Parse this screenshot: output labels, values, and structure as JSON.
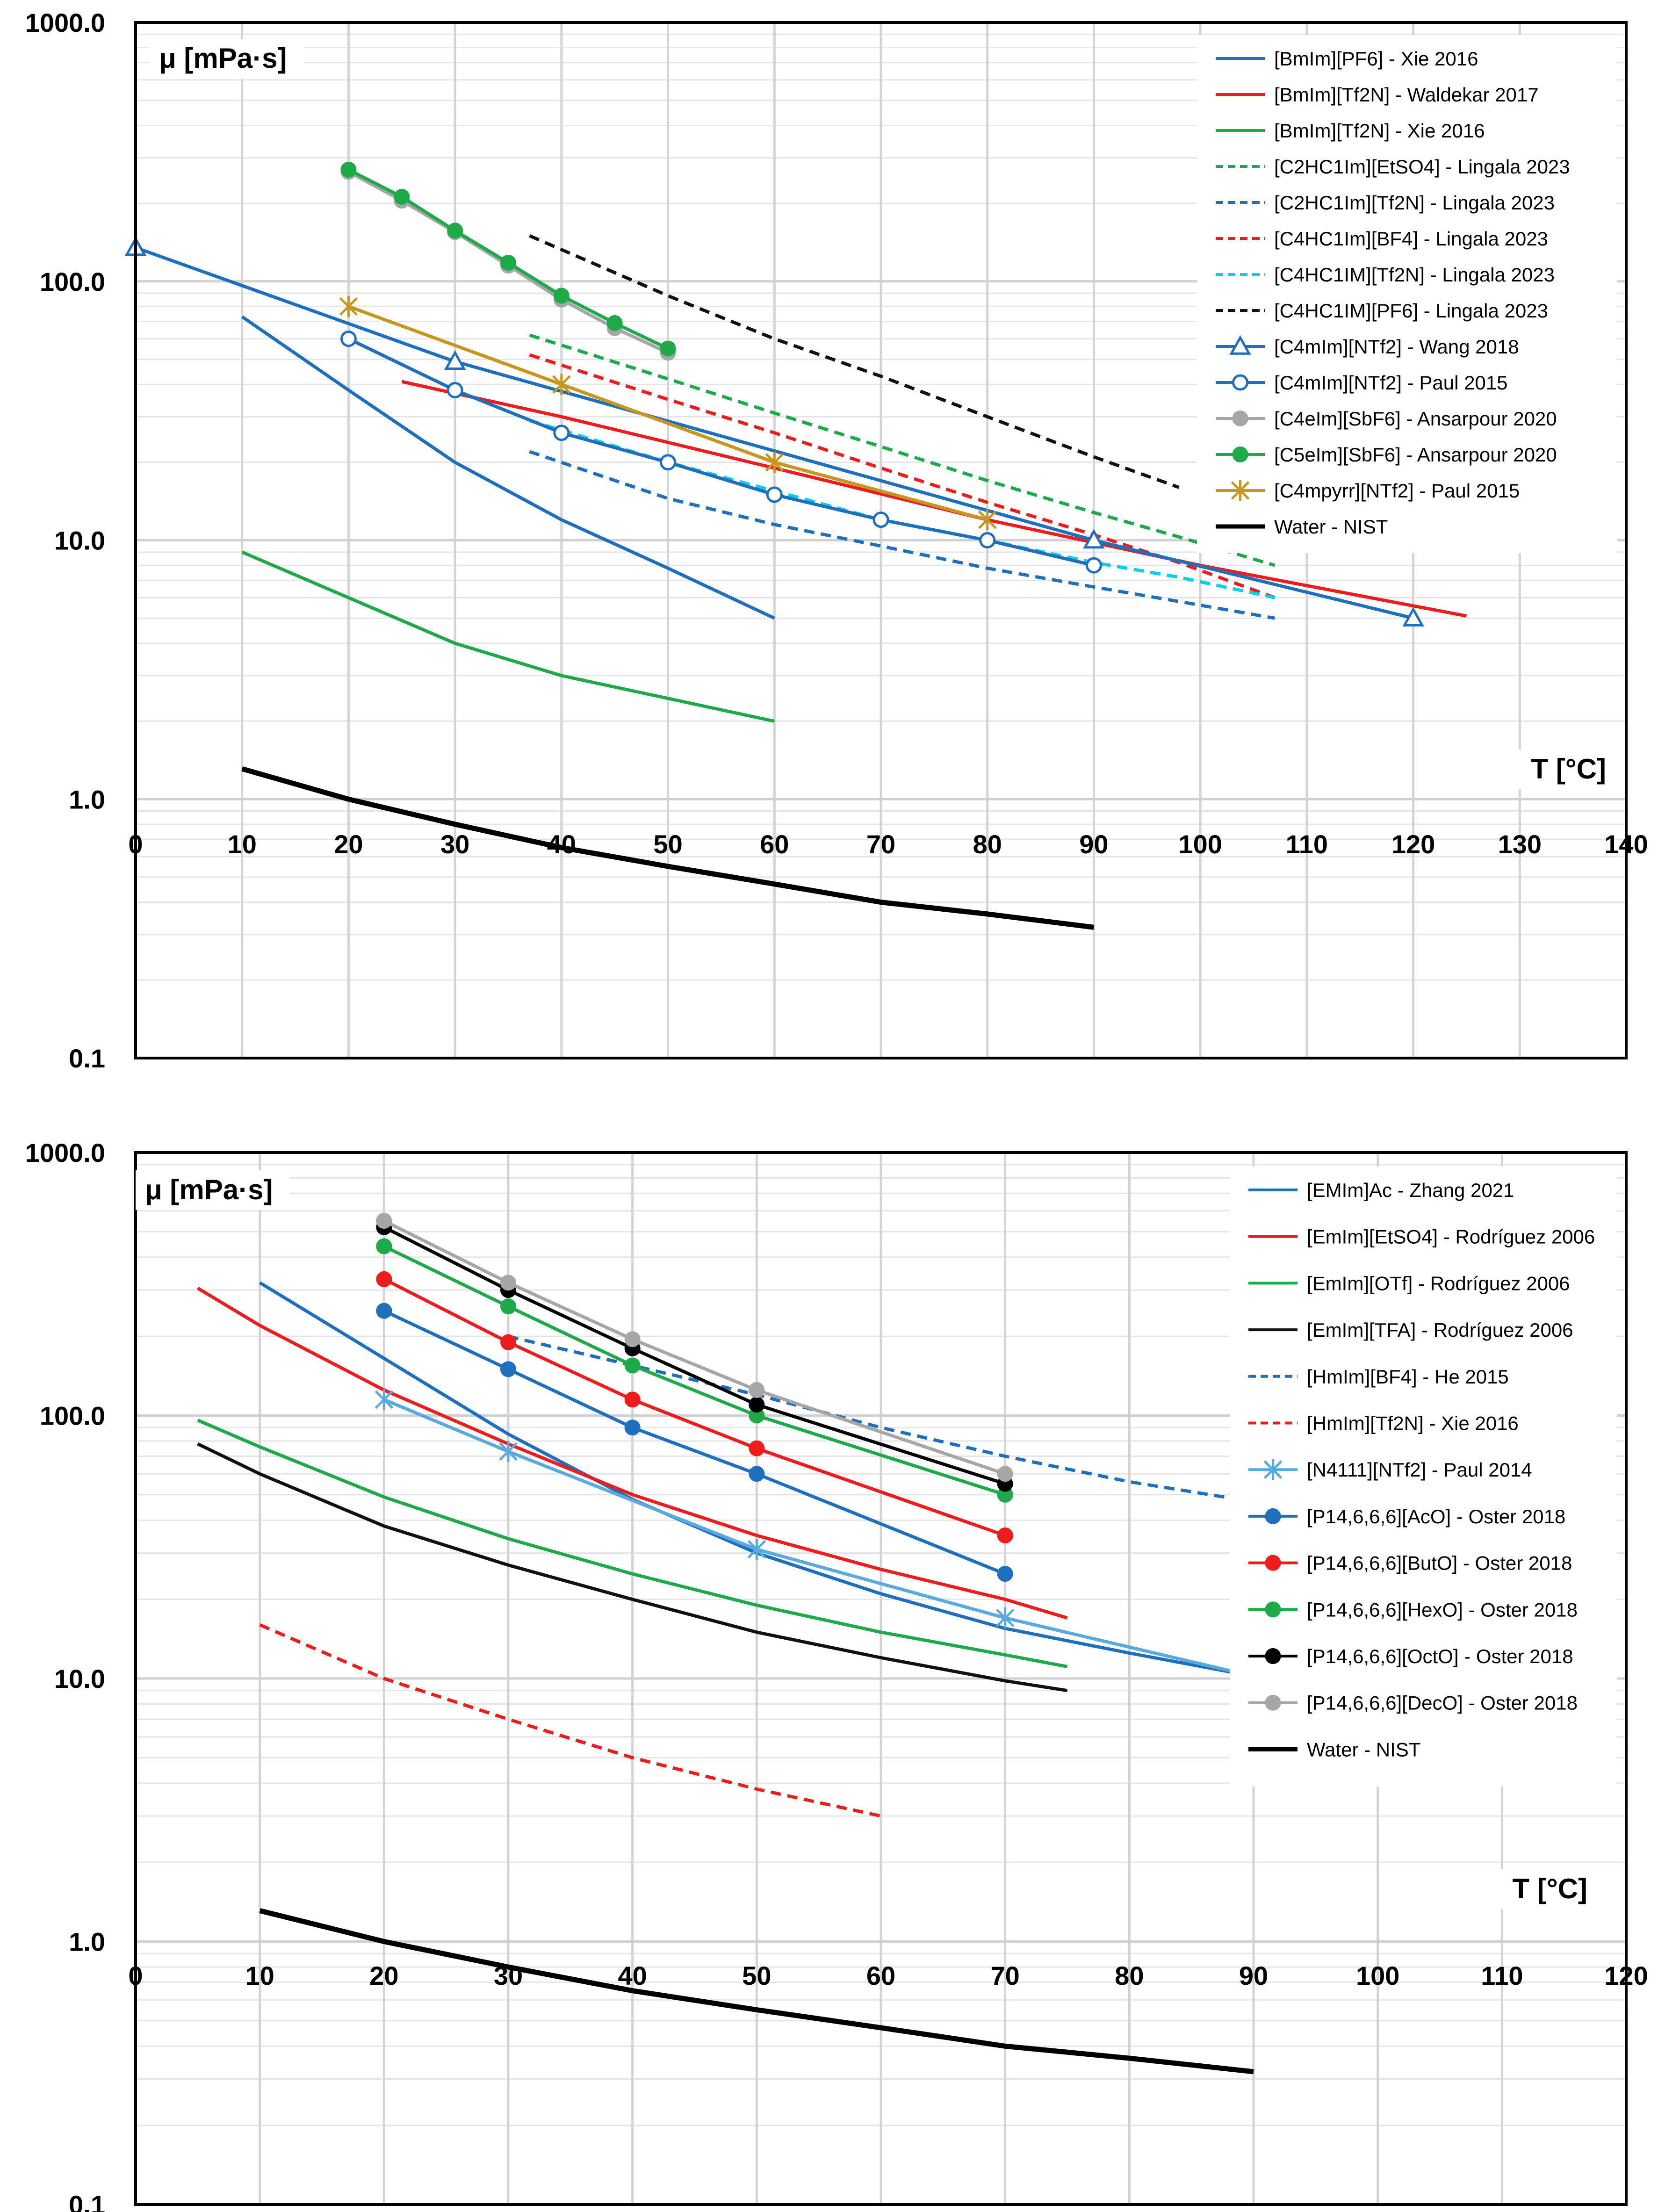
{
  "chart_data": [
    {
      "type": "line",
      "ylabel": "μ [mPa·s]",
      "xlabel": "T [°C]",
      "yscale": "log",
      "ylim": [
        0.1,
        1000
      ],
      "xlim": [
        0,
        140
      ],
      "yticks": [
        "1000.0",
        "100.0",
        "10.0",
        "1.0",
        "0.1"
      ],
      "xticks": [
        "0",
        "10",
        "20",
        "30",
        "40",
        "50",
        "60",
        "70",
        "80",
        "90",
        "100",
        "110",
        "120",
        "130",
        "140"
      ],
      "grid": true,
      "legend_position": "top-right",
      "series": [
        {
          "name": "[BmIm][PF6] - Xie 2016",
          "color": "#1f6fbf",
          "dash": "solid",
          "marker": "none",
          "x": [
            10,
            20,
            30,
            40,
            50,
            60
          ],
          "y": [
            73,
            38,
            20,
            12,
            7.8,
            5.0
          ]
        },
        {
          "name": "[BmIm][Tf2N] - Waldekar 2017",
          "color": "#ee1c1c",
          "dash": "solid",
          "marker": "none",
          "x": [
            25,
            40,
            60,
            80,
            100,
            125
          ],
          "y": [
            41,
            30,
            19,
            12,
            8.0,
            5.1
          ]
        },
        {
          "name": "[BmIm][Tf2N] - Xie 2016",
          "color": "#1faa4a",
          "dash": "solid",
          "marker": "none",
          "x": [
            10,
            20,
            30,
            40,
            50,
            60
          ],
          "y": [
            9.0,
            6.0,
            4.0,
            3.0,
            2.45,
            2.0
          ]
        },
        {
          "name": "[C2HC1Im][EtSO4] - Lingala 2023",
          "color": "#1faa4a",
          "dash": "dashed",
          "marker": "none",
          "x": [
            37,
            50,
            60,
            70,
            80,
            90,
            98,
            107
          ],
          "y": [
            62,
            42,
            31,
            23,
            17,
            12.8,
            10.3,
            8.0
          ]
        },
        {
          "name": "[C2HC1Im][Tf2N] - Lingala 2023",
          "color": "#1f6fbf",
          "dash": "dashed",
          "marker": "none",
          "x": [
            37,
            50,
            60,
            70,
            80,
            90,
            98,
            107
          ],
          "y": [
            22,
            14.5,
            11.5,
            9.5,
            7.8,
            6.6,
            5.8,
            5.0
          ]
        },
        {
          "name": "[C4HC1Im][BF4] - Lingala 2023",
          "color": "#ee1c1c",
          "dash": "dashed",
          "marker": "none",
          "x": [
            37,
            50,
            60,
            70,
            80,
            90,
            98,
            107
          ],
          "y": [
            52,
            35,
            26,
            19,
            14,
            10.5,
            8.2,
            6.0
          ]
        },
        {
          "name": "[C4HC1IM][Tf2N] - Lingala 2023",
          "color": "#00d0f0",
          "dash": "dashed",
          "marker": "none",
          "x": [
            37,
            50,
            60,
            70,
            80,
            90,
            98,
            107
          ],
          "y": [
            29,
            20,
            15.5,
            12,
            10,
            8.2,
            7.2,
            6.0
          ]
        },
        {
          "name": "[C4HC1IM][PF6] - Lingala 2023",
          "color": "#111111",
          "dash": "dashed",
          "marker": "none",
          "x": [
            37,
            50,
            60,
            70,
            80,
            90,
            98
          ],
          "y": [
            150,
            88,
            60,
            43,
            30,
            21,
            16
          ]
        },
        {
          "name": "[C4mIm][NTf2] - Wang 2018",
          "color": "#1f6fbf",
          "dash": "solid",
          "marker": "triangle",
          "x": [
            0,
            30,
            90,
            120
          ],
          "y": [
            135,
            49,
            10,
            5
          ]
        },
        {
          "name": "[C4mIm][NTf2] - Paul 2015",
          "color": "#1f6fbf",
          "dash": "solid",
          "marker": "circle-open",
          "x": [
            20,
            30,
            40,
            50,
            60,
            70,
            80,
            90
          ],
          "y": [
            60,
            38,
            26,
            20,
            15,
            12,
            10,
            8
          ]
        },
        {
          "name": "[C4eIm][SbF6] - Ansarpour 2020",
          "color": "#a6a6a6",
          "dash": "solid",
          "marker": "circle",
          "x": [
            20,
            25,
            30,
            35,
            40,
            45,
            50
          ],
          "y": [
            265,
            205,
            155,
            115,
            85,
            66,
            53
          ]
        },
        {
          "name": "[C5eIm][SbF6] - Ansarpour 2020",
          "color": "#1faa4a",
          "dash": "solid",
          "marker": "circle",
          "x": [
            20,
            25,
            30,
            35,
            40,
            45,
            50
          ],
          "y": [
            270,
            212,
            157,
            118,
            88,
            69,
            55
          ]
        },
        {
          "name": "[C4mpyrr][NTf2] - Paul 2015",
          "color": "#c8961e",
          "dash": "solid",
          "marker": "star",
          "x": [
            20,
            40,
            60,
            80
          ],
          "y": [
            80,
            40,
            20,
            12
          ]
        },
        {
          "name": "Water - NIST",
          "color": "#000000",
          "dash": "solid",
          "marker": "none",
          "width": 11,
          "x": [
            10,
            20,
            30,
            40,
            50,
            60,
            70,
            80,
            90
          ],
          "y": [
            1.31,
            1.0,
            0.8,
            0.65,
            0.55,
            0.47,
            0.4,
            0.36,
            0.32
          ]
        }
      ]
    },
    {
      "type": "line",
      "ylabel": "μ [mPa·s]",
      "xlabel": "T [°C]",
      "yscale": "log",
      "ylim": [
        0.1,
        1000
      ],
      "xlim": [
        0,
        120
      ],
      "yticks": [
        "1000.0",
        "100.0",
        "10.0",
        "1.0",
        "0.1"
      ],
      "xticks": [
        "0",
        "10",
        "20",
        "30",
        "40",
        "50",
        "60",
        "70",
        "80",
        "90",
        "100",
        "110",
        "120"
      ],
      "grid": true,
      "legend_position": "top-right",
      "series": [
        {
          "name": "[EMIm]Ac - Zhang 2021",
          "color": "#1f6fbf",
          "dash": "solid",
          "marker": "none",
          "x": [
            10,
            20,
            30,
            40,
            50,
            60,
            70,
            80,
            90
          ],
          "y": [
            320,
            165,
            85,
            48,
            30,
            21,
            15.5,
            12.5,
            10.2
          ]
        },
        {
          "name": "[EmIm][EtSO4] - Rodríguez 2006",
          "color": "#ee1c1c",
          "dash": "solid",
          "marker": "none",
          "x": [
            5,
            10,
            20,
            30,
            40,
            50,
            60,
            70,
            75
          ],
          "y": [
            305,
            220,
            125,
            78,
            50,
            35,
            26,
            20,
            17
          ]
        },
        {
          "name": "[EmIm][OTf] - Rodríguez 2006",
          "color": "#1faa4a",
          "dash": "solid",
          "marker": "none",
          "x": [
            5,
            10,
            20,
            30,
            40,
            50,
            60,
            70,
            75
          ],
          "y": [
            96,
            76,
            49,
            34,
            25,
            19,
            15,
            12.3,
            11.1
          ]
        },
        {
          "name": "[EmIm][TFA] - Rodríguez 2006",
          "color": "#111111",
          "dash": "solid",
          "marker": "none",
          "x": [
            5,
            10,
            20,
            30,
            40,
            50,
            60,
            70,
            75
          ],
          "y": [
            78,
            60,
            38,
            27,
            20,
            15,
            12,
            9.8,
            9.0
          ]
        },
        {
          "name": "[HmIm][BF4] - He 2015",
          "color": "#1f6fbf",
          "dash": "dashed",
          "marker": "none",
          "x": [
            30,
            40,
            50,
            60,
            70,
            80,
            90
          ],
          "y": [
            200,
            155,
            120,
            90,
            70,
            56,
            47
          ]
        },
        {
          "name": "[HmIm][Tf2N] - Xie 2016",
          "color": "#ee1c1c",
          "dash": "dashed",
          "marker": "none",
          "x": [
            10,
            20,
            30,
            40,
            50,
            60
          ],
          "y": [
            16,
            10,
            7,
            5,
            3.8,
            3.0
          ]
        },
        {
          "name": "[N4111][NTf2] - Paul 2014",
          "color": "#5aaae0",
          "dash": "solid",
          "marker": "asterisk",
          "x": [
            20,
            30,
            50,
            70,
            90
          ],
          "y": [
            115,
            73,
            31,
            17,
            10.2
          ]
        },
        {
          "name": "[P14,6,6,6][AcO] - Oster 2018",
          "color": "#1f6fbf",
          "dash": "solid",
          "marker": "circle",
          "x": [
            20,
            30,
            40,
            50,
            70
          ],
          "y": [
            250,
            150,
            90,
            60,
            25
          ]
        },
        {
          "name": "[P14,6,6,6][ButO] - Oster 2018",
          "color": "#ee1c1c",
          "dash": "solid",
          "marker": "circle",
          "x": [
            20,
            30,
            40,
            50,
            70
          ],
          "y": [
            330,
            190,
            115,
            75,
            35
          ]
        },
        {
          "name": "[P14,6,6,6][HexO] - Oster 2018",
          "color": "#1faa4a",
          "dash": "solid",
          "marker": "circle",
          "x": [
            20,
            30,
            40,
            50,
            70
          ],
          "y": [
            440,
            260,
            155,
            100,
            50
          ]
        },
        {
          "name": "[P14,6,6,6][OctO] - Oster 2018",
          "color": "#000000",
          "dash": "solid",
          "marker": "circle",
          "x": [
            20,
            30,
            40,
            50,
            70
          ],
          "y": [
            520,
            300,
            180,
            110,
            55
          ]
        },
        {
          "name": "[P14,6,6,6][DecO] - Oster 2018",
          "color": "#a6a6a6",
          "dash": "solid",
          "marker": "circle",
          "x": [
            20,
            30,
            40,
            50,
            70
          ],
          "y": [
            550,
            320,
            195,
            125,
            60
          ]
        },
        {
          "name": "Water - NIST",
          "color": "#000000",
          "dash": "solid",
          "marker": "none",
          "width": 11,
          "x": [
            10,
            20,
            30,
            40,
            50,
            60,
            70,
            80,
            90
          ],
          "y": [
            1.31,
            1.0,
            0.8,
            0.65,
            0.55,
            0.47,
            0.4,
            0.36,
            0.32
          ]
        }
      ]
    }
  ]
}
